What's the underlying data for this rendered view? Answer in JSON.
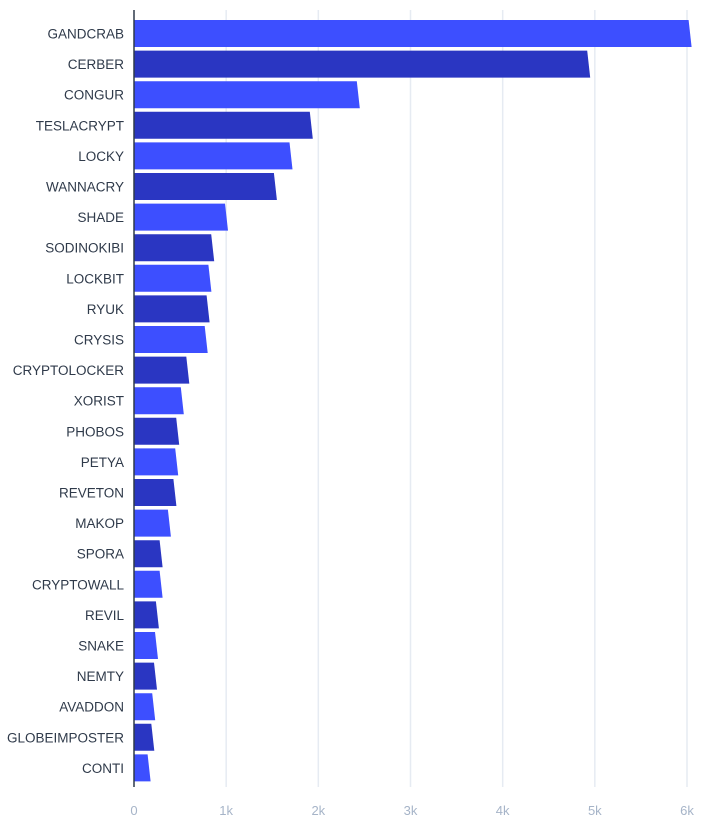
{
  "chart_data": {
    "type": "bar",
    "orientation": "horizontal",
    "title": "",
    "xlabel": "",
    "ylabel": "",
    "categories": [
      "GANDCRAB",
      "CERBER",
      "CONGUR",
      "TESLACRYPT",
      "LOCKY",
      "WANNACRY",
      "SHADE",
      "SODINOKIBI",
      "LOCKBIT",
      "RYUK",
      "CRYSIS",
      "CRYPTOLOCKER",
      "XORIST",
      "PHOBOS",
      "PETYA",
      "REVETON",
      "MAKOP",
      "SPORA",
      "CRYPTOWALL",
      "REVIL",
      "SNAKE",
      "NEMTY",
      "AVADDON",
      "GLOBEIMPOSTER",
      "CONTI"
    ],
    "values": [
      6050,
      4950,
      2450,
      1940,
      1720,
      1550,
      1020,
      870,
      840,
      820,
      800,
      600,
      540,
      490,
      480,
      460,
      400,
      310,
      310,
      270,
      260,
      250,
      230,
      220,
      180
    ],
    "xlim": [
      0,
      6000
    ],
    "xticks": [
      0,
      1000,
      2000,
      3000,
      4000,
      5000,
      6000
    ],
    "xtick_labels": [
      "0",
      "1k",
      "2k",
      "3k",
      "4k",
      "5k",
      "6k"
    ],
    "grid": "vertical",
    "legend": "none",
    "colors": {
      "light": "#3d4fff",
      "dark": "#2a36c2",
      "grid": "#e6ebf2",
      "axis": "#2f3a4a",
      "tick_text": "#a6b4c8",
      "label_text": "#2f3a4a"
    }
  }
}
